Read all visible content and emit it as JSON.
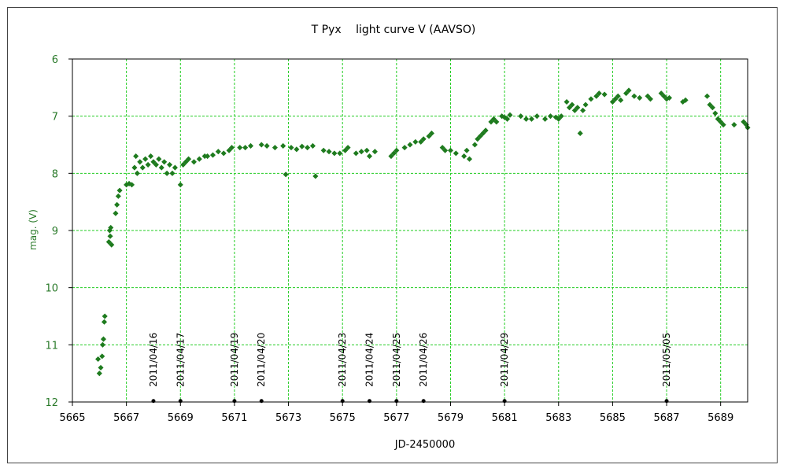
{
  "chart_data": {
    "type": "scatter",
    "title": "T Pyx　 light curve  V (AAVSO)",
    "xlabel": "JD-2450000",
    "ylabel": "mag. (V)",
    "xlim": [
      5665,
      5690
    ],
    "ylim": [
      12,
      6
    ],
    "y_inverted": true,
    "grid": true,
    "x_ticks": [
      5665,
      5667,
      5669,
      5671,
      5673,
      5675,
      5677,
      5679,
      5681,
      5683,
      5685,
      5687,
      5689
    ],
    "y_ticks": [
      6,
      7,
      8,
      9,
      10,
      11,
      12
    ],
    "colors": {
      "data": "#1e7b1e",
      "grid": "#22cc22",
      "axis": "#000000",
      "ylabel": "#2a7a2a"
    },
    "series": [
      {
        "name": "",
        "color": "#1e7b1e",
        "points": [
          [
            5665.95,
            11.25
          ],
          [
            5666.0,
            11.5
          ],
          [
            5666.05,
            11.4
          ],
          [
            5666.1,
            11.2
          ],
          [
            5666.12,
            11.0
          ],
          [
            5666.15,
            10.9
          ],
          [
            5666.18,
            10.6
          ],
          [
            5666.2,
            10.5
          ],
          [
            5666.35,
            9.2
          ],
          [
            5666.38,
            9.0
          ],
          [
            5666.4,
            9.1
          ],
          [
            5666.42,
            8.95
          ],
          [
            5666.45,
            9.25
          ],
          [
            5666.6,
            8.7
          ],
          [
            5666.65,
            8.55
          ],
          [
            5666.7,
            8.4
          ],
          [
            5666.75,
            8.3
          ],
          [
            5667.0,
            8.2
          ],
          [
            5667.1,
            8.18
          ],
          [
            5667.2,
            8.2
          ],
          [
            5667.3,
            7.9
          ],
          [
            5667.35,
            7.7
          ],
          [
            5667.4,
            8.0
          ],
          [
            5667.5,
            7.8
          ],
          [
            5667.6,
            7.9
          ],
          [
            5667.7,
            7.75
          ],
          [
            5667.8,
            7.85
          ],
          [
            5667.9,
            7.7
          ],
          [
            5668.0,
            7.8
          ],
          [
            5668.1,
            7.85
          ],
          [
            5668.2,
            7.75
          ],
          [
            5668.3,
            7.9
          ],
          [
            5668.4,
            7.8
          ],
          [
            5668.5,
            8.0
          ],
          [
            5668.6,
            7.85
          ],
          [
            5668.7,
            8.0
          ],
          [
            5668.8,
            7.9
          ],
          [
            5669.0,
            8.2
          ],
          [
            5669.1,
            7.85
          ],
          [
            5669.2,
            7.8
          ],
          [
            5669.3,
            7.75
          ],
          [
            5669.5,
            7.8
          ],
          [
            5669.7,
            7.75
          ],
          [
            5669.9,
            7.7
          ],
          [
            5670.0,
            7.7
          ],
          [
            5670.2,
            7.68
          ],
          [
            5670.4,
            7.62
          ],
          [
            5670.6,
            7.65
          ],
          [
            5670.8,
            7.6
          ],
          [
            5670.9,
            7.55
          ],
          [
            5671.2,
            7.55
          ],
          [
            5671.4,
            7.55
          ],
          [
            5671.6,
            7.52
          ],
          [
            5672.0,
            7.5
          ],
          [
            5672.2,
            7.52
          ],
          [
            5672.5,
            7.55
          ],
          [
            5672.8,
            7.52
          ],
          [
            5672.9,
            8.02
          ],
          [
            5673.1,
            7.55
          ],
          [
            5673.3,
            7.58
          ],
          [
            5673.5,
            7.53
          ],
          [
            5673.7,
            7.55
          ],
          [
            5673.9,
            7.52
          ],
          [
            5674.0,
            8.05
          ],
          [
            5674.3,
            7.6
          ],
          [
            5674.5,
            7.62
          ],
          [
            5674.7,
            7.65
          ],
          [
            5674.9,
            7.65
          ],
          [
            5675.1,
            7.6
          ],
          [
            5675.2,
            7.55
          ],
          [
            5675.5,
            7.65
          ],
          [
            5675.7,
            7.62
          ],
          [
            5675.9,
            7.6
          ],
          [
            5676.0,
            7.7
          ],
          [
            5676.2,
            7.62
          ],
          [
            5676.8,
            7.7
          ],
          [
            5676.9,
            7.65
          ],
          [
            5677.0,
            7.6
          ],
          [
            5677.3,
            7.55
          ],
          [
            5677.5,
            7.5
          ],
          [
            5677.7,
            7.45
          ],
          [
            5677.9,
            7.45
          ],
          [
            5678.0,
            7.4
          ],
          [
            5678.2,
            7.35
          ],
          [
            5678.3,
            7.3
          ],
          [
            5678.7,
            7.55
          ],
          [
            5678.8,
            7.6
          ],
          [
            5679.0,
            7.6
          ],
          [
            5679.2,
            7.65
          ],
          [
            5679.5,
            7.7
          ],
          [
            5679.6,
            7.6
          ],
          [
            5679.7,
            7.75
          ],
          [
            5679.9,
            7.5
          ],
          [
            5680.0,
            7.4
          ],
          [
            5680.1,
            7.35
          ],
          [
            5680.2,
            7.3
          ],
          [
            5680.3,
            7.25
          ],
          [
            5680.5,
            7.1
          ],
          [
            5680.6,
            7.05
          ],
          [
            5680.7,
            7.1
          ],
          [
            5680.9,
            7.0
          ],
          [
            5681.0,
            7.02
          ],
          [
            5681.1,
            7.05
          ],
          [
            5681.2,
            6.98
          ],
          [
            5681.6,
            7.0
          ],
          [
            5681.8,
            7.05
          ],
          [
            5682.0,
            7.05
          ],
          [
            5682.2,
            7.0
          ],
          [
            5682.5,
            7.05
          ],
          [
            5682.7,
            7.0
          ],
          [
            5682.9,
            7.02
          ],
          [
            5683.0,
            7.05
          ],
          [
            5683.1,
            7.0
          ],
          [
            5683.3,
            6.75
          ],
          [
            5683.4,
            6.85
          ],
          [
            5683.5,
            6.8
          ],
          [
            5683.6,
            6.9
          ],
          [
            5683.7,
            6.85
          ],
          [
            5683.8,
            7.3
          ],
          [
            5683.9,
            6.9
          ],
          [
            5684.0,
            6.8
          ],
          [
            5684.2,
            6.7
          ],
          [
            5684.4,
            6.65
          ],
          [
            5684.5,
            6.6
          ],
          [
            5684.7,
            6.62
          ],
          [
            5685.0,
            6.75
          ],
          [
            5685.1,
            6.7
          ],
          [
            5685.2,
            6.65
          ],
          [
            5685.3,
            6.72
          ],
          [
            5685.5,
            6.6
          ],
          [
            5685.6,
            6.55
          ],
          [
            5685.8,
            6.65
          ],
          [
            5686.0,
            6.68
          ],
          [
            5686.3,
            6.65
          ],
          [
            5686.4,
            6.7
          ],
          [
            5686.8,
            6.6
          ],
          [
            5686.9,
            6.65
          ],
          [
            5687.0,
            6.7
          ],
          [
            5687.1,
            6.68
          ],
          [
            5687.6,
            6.75
          ],
          [
            5687.7,
            6.72
          ],
          [
            5688.5,
            6.65
          ],
          [
            5688.6,
            6.8
          ],
          [
            5688.7,
            6.85
          ],
          [
            5688.8,
            6.95
          ],
          [
            5688.9,
            7.05
          ],
          [
            5689.0,
            7.1
          ],
          [
            5689.1,
            7.15
          ],
          [
            5689.5,
            7.15
          ],
          [
            5689.85,
            7.1
          ],
          [
            5689.95,
            7.15
          ],
          [
            5690.0,
            7.2
          ]
        ]
      }
    ],
    "annotations": [
      {
        "label": "2011/04/16",
        "x": 5668.0,
        "y": 11.9
      },
      {
        "label": "2011/04/17",
        "x": 5669.0,
        "y": 11.9
      },
      {
        "label": "2011/04/19",
        "x": 5671.0,
        "y": 11.9
      },
      {
        "label": "2011/04/20",
        "x": 5672.0,
        "y": 11.9
      },
      {
        "label": "2011/04/23",
        "x": 5675.0,
        "y": 11.9
      },
      {
        "label": "2011/04/24",
        "x": 5676.0,
        "y": 11.9
      },
      {
        "label": "2011/04/25",
        "x": 5677.0,
        "y": 11.9
      },
      {
        "label": "2011/04/26",
        "x": 5678.0,
        "y": 11.9
      },
      {
        "label": "2011/04/29",
        "x": 5681.0,
        "y": 11.9
      },
      {
        "label": "2011/05/05",
        "x": 5687.0,
        "y": 11.9
      }
    ]
  }
}
